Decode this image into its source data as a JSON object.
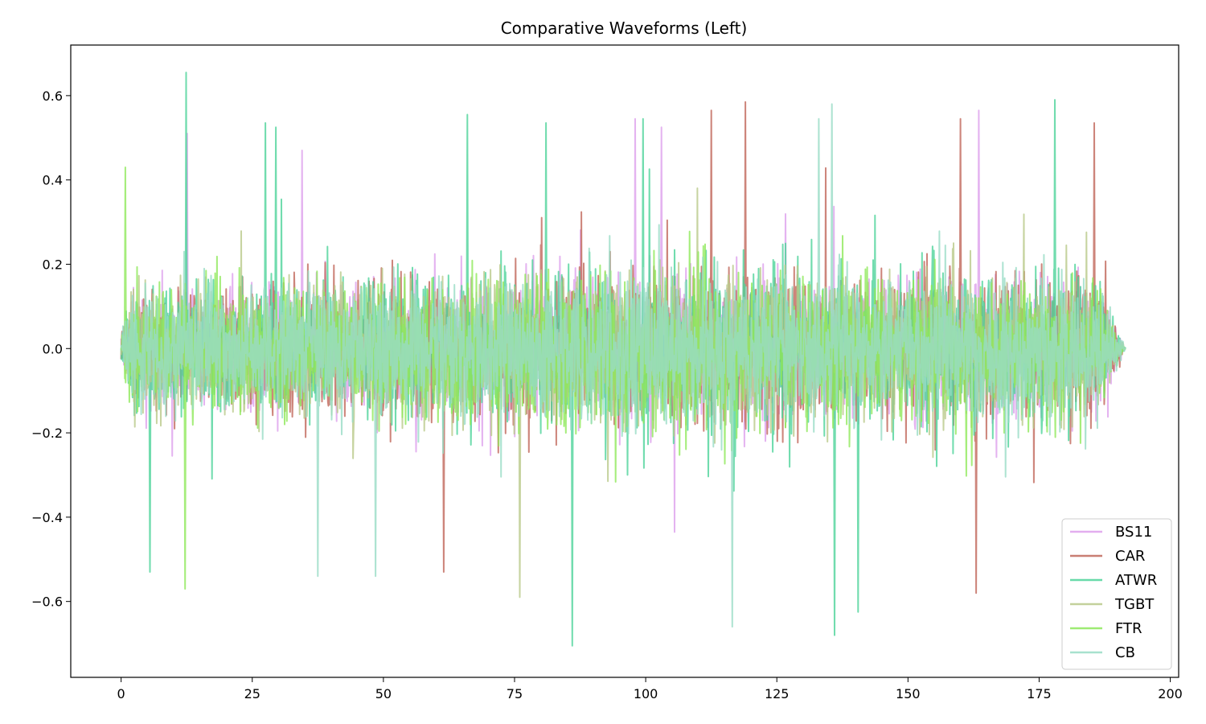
{
  "chart_data": {
    "type": "line",
    "title": "Comparative Waveforms (Left)",
    "xlabel": "",
    "ylabel": "",
    "xlim": [
      -9.6,
      201.6
    ],
    "ylim": [
      -0.78,
      0.72
    ],
    "x_ticks": [
      0,
      25,
      50,
      75,
      100,
      125,
      150,
      175,
      200
    ],
    "y_ticks": [
      0.6,
      0.4,
      0.2,
      0.0,
      -0.2,
      -0.4,
      -0.6
    ],
    "y_tick_labels": [
      "0.6",
      "0.4",
      "0.2",
      "0.0",
      "−0.2",
      "−0.4",
      "−0.6"
    ],
    "grid": false,
    "legend_position": "bottom-right",
    "duration": 191.5,
    "series": [
      {
        "name": "BS11",
        "color": "#dda0ec",
        "envelope": {
          "x": [
            0,
            2,
            12,
            25,
            50,
            75,
            100,
            125,
            150,
            170,
            185,
            188,
            191.5
          ],
          "amp": [
            0.06,
            0.18,
            0.16,
            0.19,
            0.2,
            0.21,
            0.23,
            0.22,
            0.21,
            0.21,
            0.2,
            0.12,
            0.0
          ]
        }
      },
      {
        "name": "CAR",
        "color": "#c0675a",
        "envelope": {
          "x": [
            0,
            2,
            12,
            25,
            50,
            75,
            100,
            125,
            150,
            170,
            185,
            188,
            191.5
          ],
          "amp": [
            0.06,
            0.17,
            0.16,
            0.18,
            0.2,
            0.21,
            0.22,
            0.22,
            0.21,
            0.22,
            0.22,
            0.15,
            0.0
          ]
        }
      },
      {
        "name": "ATWR",
        "color": "#4ed39a",
        "envelope": {
          "x": [
            0,
            2,
            12,
            25,
            50,
            75,
            100,
            125,
            150,
            170,
            185,
            188,
            191.5
          ],
          "amp": [
            0.06,
            0.19,
            0.17,
            0.19,
            0.2,
            0.21,
            0.23,
            0.23,
            0.21,
            0.21,
            0.2,
            0.12,
            0.0
          ]
        }
      },
      {
        "name": "TGBT",
        "color": "#b9c98a",
        "envelope": {
          "x": [
            0,
            2,
            12,
            25,
            50,
            75,
            100,
            125,
            150,
            170,
            185,
            188,
            191.5
          ],
          "amp": [
            0.06,
            0.17,
            0.16,
            0.18,
            0.19,
            0.2,
            0.22,
            0.22,
            0.2,
            0.2,
            0.19,
            0.11,
            0.0
          ]
        }
      },
      {
        "name": "FTR",
        "color": "#8ee85a",
        "envelope": {
          "x": [
            0,
            2,
            12,
            25,
            50,
            75,
            100,
            125,
            150,
            170,
            185,
            188,
            191.5
          ],
          "amp": [
            0.06,
            0.19,
            0.17,
            0.18,
            0.2,
            0.21,
            0.23,
            0.22,
            0.21,
            0.2,
            0.2,
            0.12,
            0.0
          ]
        }
      },
      {
        "name": "CB",
        "color": "#98dcc6",
        "envelope": {
          "x": [
            0,
            2,
            12,
            25,
            50,
            75,
            100,
            125,
            150,
            170,
            185,
            188,
            191.5
          ],
          "amp": [
            0.06,
            0.18,
            0.16,
            0.18,
            0.19,
            0.2,
            0.22,
            0.22,
            0.2,
            0.2,
            0.19,
            0.12,
            0.0
          ]
        }
      }
    ],
    "peaks": [
      {
        "series": "ATWR",
        "x": 12.4,
        "y": 0.655
      },
      {
        "series": "BS11",
        "x": 12.6,
        "y": 0.51
      },
      {
        "series": "FTR",
        "x": 0.8,
        "y": 0.43
      },
      {
        "series": "ATWR",
        "x": 5.5,
        "y": -0.53
      },
      {
        "series": "FTR",
        "x": 12.2,
        "y": -0.57
      },
      {
        "series": "ATWR",
        "x": 27.5,
        "y": 0.535
      },
      {
        "series": "ATWR",
        "x": 29.5,
        "y": 0.525
      },
      {
        "series": "BS11",
        "x": 34.5,
        "y": 0.47
      },
      {
        "series": "CB",
        "x": 37.5,
        "y": -0.54
      },
      {
        "series": "CB",
        "x": 48.5,
        "y": -0.54
      },
      {
        "series": "CAR",
        "x": 61.5,
        "y": -0.53
      },
      {
        "series": "ATWR",
        "x": 66.0,
        "y": 0.555
      },
      {
        "series": "TGBT",
        "x": 76.0,
        "y": -0.59
      },
      {
        "series": "ATWR",
        "x": 81.0,
        "y": 0.535
      },
      {
        "series": "ATWR",
        "x": 86.0,
        "y": -0.705
      },
      {
        "series": "BS11",
        "x": 98.0,
        "y": 0.545
      },
      {
        "series": "ATWR",
        "x": 99.5,
        "y": 0.545
      },
      {
        "series": "BS11",
        "x": 103.0,
        "y": 0.525
      },
      {
        "series": "CAR",
        "x": 112.5,
        "y": 0.565
      },
      {
        "series": "CB",
        "x": 116.5,
        "y": -0.66
      },
      {
        "series": "CAR",
        "x": 119.0,
        "y": 0.585
      },
      {
        "series": "CB",
        "x": 133.0,
        "y": 0.545
      },
      {
        "series": "CB",
        "x": 135.5,
        "y": 0.58
      },
      {
        "series": "ATWR",
        "x": 136.0,
        "y": -0.68
      },
      {
        "series": "ATWR",
        "x": 140.5,
        "y": -0.625
      },
      {
        "series": "CAR",
        "x": 160.0,
        "y": 0.545
      },
      {
        "series": "CAR",
        "x": 163.0,
        "y": -0.58
      },
      {
        "series": "BS11",
        "x": 163.5,
        "y": 0.565
      },
      {
        "series": "ATWR",
        "x": 178.0,
        "y": 0.59
      },
      {
        "series": "CAR",
        "x": 185.5,
        "y": 0.535
      }
    ]
  }
}
